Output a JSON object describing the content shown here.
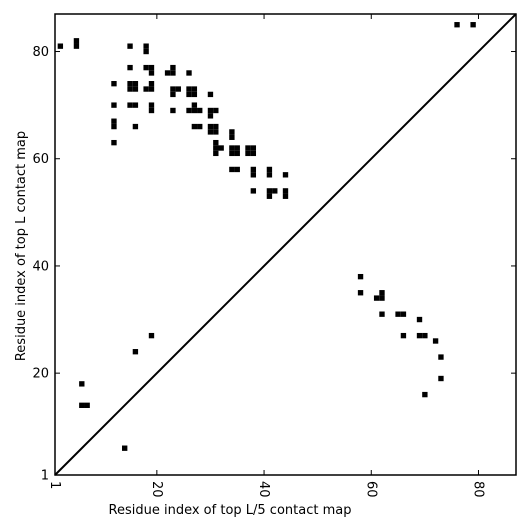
{
  "chart_data": {
    "type": "heatmap",
    "xlabel": "Residue index of top L/5 contact map",
    "ylabel": "Residue index of top L contact map",
    "xlim": [
      1,
      87
    ],
    "ylim": [
      1,
      87
    ],
    "x_ticks": [
      1,
      20,
      40,
      60,
      80
    ],
    "y_ticks": [
      1,
      20,
      40,
      60,
      80
    ],
    "diagonal": true,
    "upper_left_contacts": [
      [
        2,
        81
      ],
      [
        5,
        81
      ],
      [
        5,
        82
      ],
      [
        12,
        74
      ],
      [
        12,
        70
      ],
      [
        12,
        67
      ],
      [
        12,
        66
      ],
      [
        12,
        63
      ],
      [
        15,
        81
      ],
      [
        15,
        77
      ],
      [
        15,
        74
      ],
      [
        15,
        73
      ],
      [
        16,
        74
      ],
      [
        16,
        73
      ],
      [
        15,
        70
      ],
      [
        16,
        70
      ],
      [
        16,
        66
      ],
      [
        18,
        81
      ],
      [
        18,
        80
      ],
      [
        18,
        77
      ],
      [
        19,
        77
      ],
      [
        19,
        76
      ],
      [
        18,
        73
      ],
      [
        19,
        73
      ],
      [
        19,
        74
      ],
      [
        19,
        70
      ],
      [
        19,
        69
      ],
      [
        22,
        76
      ],
      [
        23,
        76
      ],
      [
        23,
        77
      ],
      [
        23,
        73
      ],
      [
        24,
        73
      ],
      [
        23,
        72
      ],
      [
        23,
        69
      ],
      [
        26,
        76
      ],
      [
        26,
        73
      ],
      [
        27,
        73
      ],
      [
        26,
        72
      ],
      [
        27,
        72
      ],
      [
        27,
        70
      ],
      [
        26,
        69
      ],
      [
        27,
        69
      ],
      [
        28,
        69
      ],
      [
        27,
        66
      ],
      [
        28,
        66
      ],
      [
        30,
        72
      ],
      [
        30,
        69
      ],
      [
        31,
        69
      ],
      [
        30,
        68
      ],
      [
        30,
        66
      ],
      [
        31,
        66
      ],
      [
        30,
        65
      ],
      [
        31,
        65
      ],
      [
        31,
        63
      ],
      [
        31,
        62
      ],
      [
        32,
        62
      ],
      [
        31,
        61
      ],
      [
        34,
        65
      ],
      [
        34,
        64
      ],
      [
        34,
        62
      ],
      [
        35,
        62
      ],
      [
        34,
        61
      ],
      [
        35,
        61
      ],
      [
        34,
        58
      ],
      [
        35,
        58
      ],
      [
        37,
        62
      ],
      [
        38,
        62
      ],
      [
        37,
        61
      ],
      [
        38,
        61
      ],
      [
        38,
        58
      ],
      [
        38,
        57
      ],
      [
        38,
        54
      ],
      [
        41,
        58
      ],
      [
        41,
        57
      ],
      [
        41,
        54
      ],
      [
        42,
        54
      ],
      [
        41,
        53
      ],
      [
        44,
        57
      ],
      [
        44,
        54
      ],
      [
        44,
        53
      ],
      [
        76,
        85
      ],
      [
        79,
        85
      ]
    ],
    "lower_right_contacts": [
      [
        6,
        18
      ],
      [
        6,
        14
      ],
      [
        7,
        14
      ],
      [
        14,
        6
      ],
      [
        16,
        24
      ],
      [
        19,
        27
      ],
      [
        58,
        38
      ],
      [
        58,
        35
      ],
      [
        61,
        34
      ],
      [
        62,
        34
      ],
      [
        62,
        35
      ],
      [
        62,
        31
      ],
      [
        65,
        31
      ],
      [
        66,
        31
      ],
      [
        66,
        27
      ],
      [
        69,
        30
      ],
      [
        69,
        27
      ],
      [
        70,
        27
      ],
      [
        70,
        16
      ],
      [
        72,
        26
      ],
      [
        73,
        23
      ],
      [
        73,
        19
      ]
    ]
  }
}
